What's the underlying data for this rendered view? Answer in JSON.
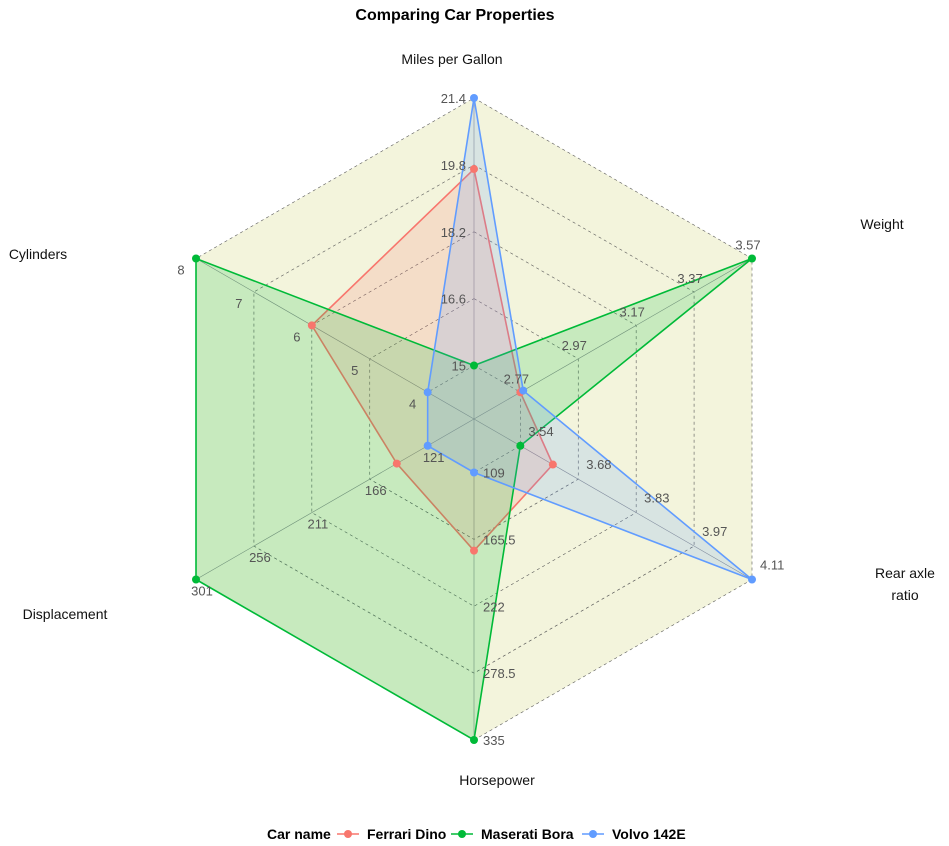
{
  "chart_data": {
    "type": "radar",
    "title": "Comparing Car Properties",
    "axes": [
      {
        "name": "Miles per Gallon",
        "lines": [
          "Miles per Gallon"
        ],
        "min": 15,
        "max": 21.4,
        "ticks": [
          "15",
          "16.6",
          "18.2",
          "19.8",
          "21.4"
        ]
      },
      {
        "name": "Weight",
        "lines": [
          "Weight"
        ],
        "min": 2.77,
        "max": 3.57,
        "ticks": [
          "2.77",
          "2.97",
          "3.17",
          "3.37",
          "3.57"
        ]
      },
      {
        "name": "Rear axle ratio",
        "lines": [
          "Rear axle",
          "ratio"
        ],
        "min": 3.54,
        "max": 4.11,
        "ticks": [
          "3.54",
          "3.68",
          "3.83",
          "3.97",
          "4.11"
        ]
      },
      {
        "name": "Horsepower",
        "lines": [
          "Horsepower"
        ],
        "min": 109,
        "max": 335,
        "ticks": [
          "109",
          "165.5",
          "222",
          "278.5",
          "335"
        ]
      },
      {
        "name": "Displacement",
        "lines": [
          "Displacement"
        ],
        "min": 121,
        "max": 301,
        "ticks": [
          "121",
          "166",
          "211",
          "256",
          "301"
        ]
      },
      {
        "name": "Cylinders",
        "lines": [
          "Cylinders"
        ],
        "min": 4,
        "max": 8,
        "ticks": [
          "4",
          "5",
          "6",
          "7",
          "8"
        ]
      }
    ],
    "series": [
      {
        "name": "Ferrari Dino",
        "color": "#F8766D",
        "values": [
          19.7,
          2.77,
          3.62,
          175,
          145,
          6
        ]
      },
      {
        "name": "Maserati Bora",
        "color": "#00BA38",
        "values": [
          15.0,
          3.57,
          3.54,
          335,
          301,
          8
        ]
      },
      {
        "name": "Volvo 142E",
        "color": "#619CFF",
        "values": [
          21.4,
          2.78,
          4.11,
          109,
          121,
          4
        ]
      }
    ],
    "legend": {
      "title": "Car name",
      "placement": "bottom"
    },
    "background_color": "#F3F4DC"
  }
}
